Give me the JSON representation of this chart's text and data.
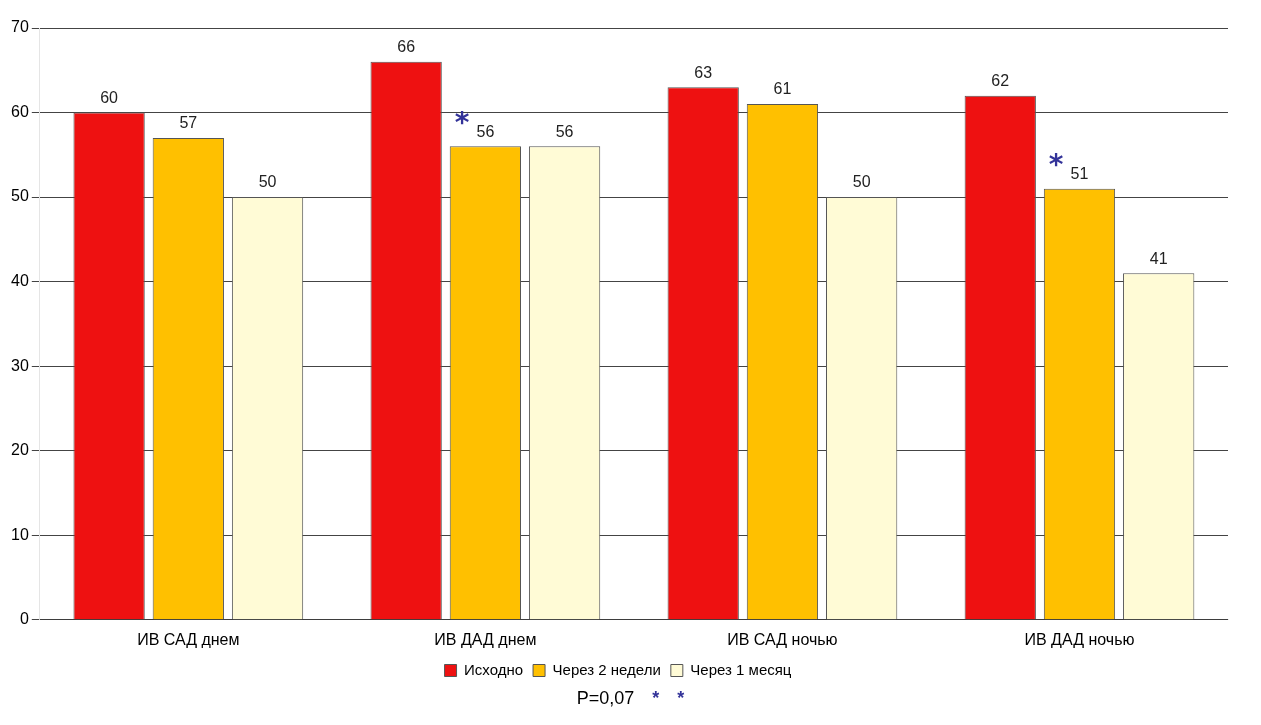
{
  "chart_data": {
    "type": "bar",
    "categories": [
      "ИВ САД днем",
      "ИВ ДАД днем",
      "ИВ САД ночью",
      "ИВ ДАД ночью"
    ],
    "series": [
      {
        "name": "Исходно",
        "color": "#ee1111",
        "values": [
          60,
          66,
          63,
          62
        ]
      },
      {
        "name": "Через 2 недели",
        "color": "#ffc000",
        "values": [
          57,
          56,
          61,
          51
        ]
      },
      {
        "name": "Через 1 месяц",
        "color": "#fffbd6",
        "values": [
          50,
          56,
          50,
          41
        ]
      }
    ],
    "ylim": [
      0,
      70
    ],
    "yticks": [
      0,
      10,
      20,
      30,
      40,
      50,
      60,
      70
    ],
    "grid": "y",
    "legend": "bottom",
    "data_labels": true,
    "annotations": [
      "P=0,07",
      {
        "text": "*",
        "x": "ИВ ДАД днем",
        "y": 56
      },
      "*",
      {
        "text": "*",
        "x": "ИВ ДАД ночью",
        "y": 51
      },
      "*"
    ]
  }
}
